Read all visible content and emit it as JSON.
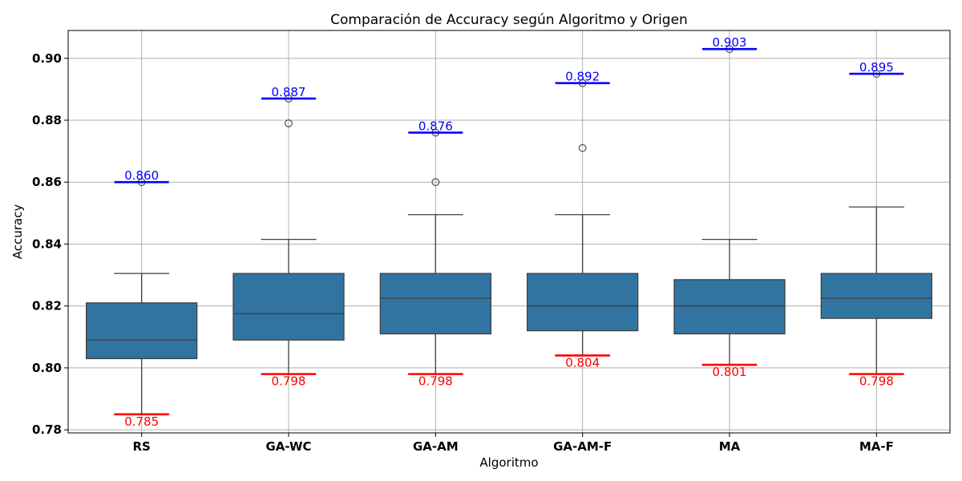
{
  "chart_data": {
    "type": "box",
    "title": "Comparación de Accuracy según Algoritmo y Origen",
    "xlabel": "Algoritmo",
    "ylabel": "Accuracy",
    "ylim": [
      0.779,
      0.909
    ],
    "yticks": [
      0.78,
      0.8,
      0.82,
      0.84,
      0.86,
      0.88,
      0.9
    ],
    "ytick_labels": [
      "0.78",
      "0.80",
      "0.82",
      "0.84",
      "0.86",
      "0.88",
      "0.90"
    ],
    "grid": true,
    "box_color": "#3274a1",
    "max_line_color": "#0000ff",
    "min_line_color": "#ff0000",
    "categories": [
      "RS",
      "GA-WC",
      "GA-AM",
      "GA-AM-F",
      "MA",
      "MA-F"
    ],
    "boxes": [
      {
        "category": "RS",
        "whisker_low": 0.785,
        "q1": 0.803,
        "median": 0.809,
        "q3": 0.821,
        "whisker_high": 0.8305,
        "outliers": [
          0.86
        ],
        "max": 0.86,
        "min": 0.785,
        "max_label": "0.860",
        "min_label": "0.785"
      },
      {
        "category": "GA-WC",
        "whisker_low": 0.798,
        "q1": 0.809,
        "median": 0.8175,
        "q3": 0.8305,
        "whisker_high": 0.8415,
        "outliers": [
          0.879,
          0.887
        ],
        "max": 0.887,
        "min": 0.798,
        "max_label": "0.887",
        "min_label": "0.798"
      },
      {
        "category": "GA-AM",
        "whisker_low": 0.798,
        "q1": 0.811,
        "median": 0.8225,
        "q3": 0.8305,
        "whisker_high": 0.8495,
        "outliers": [
          0.86,
          0.876
        ],
        "max": 0.876,
        "min": 0.798,
        "max_label": "0.876",
        "min_label": "0.798"
      },
      {
        "category": "GA-AM-F",
        "whisker_low": 0.804,
        "q1": 0.812,
        "median": 0.82,
        "q3": 0.8305,
        "whisker_high": 0.8495,
        "outliers": [
          0.871,
          0.892
        ],
        "max": 0.892,
        "min": 0.804,
        "max_label": "0.892",
        "min_label": "0.804"
      },
      {
        "category": "MA",
        "whisker_low": 0.801,
        "q1": 0.811,
        "median": 0.82,
        "q3": 0.8285,
        "whisker_high": 0.8415,
        "outliers": [
          0.903
        ],
        "max": 0.903,
        "min": 0.801,
        "max_label": "0.903",
        "min_label": "0.801"
      },
      {
        "category": "MA-F",
        "whisker_low": 0.798,
        "q1": 0.816,
        "median": 0.8225,
        "q3": 0.8305,
        "whisker_high": 0.852,
        "outliers": [
          0.895
        ],
        "max": 0.895,
        "min": 0.798,
        "max_label": "0.895",
        "min_label": "0.798"
      }
    ]
  }
}
